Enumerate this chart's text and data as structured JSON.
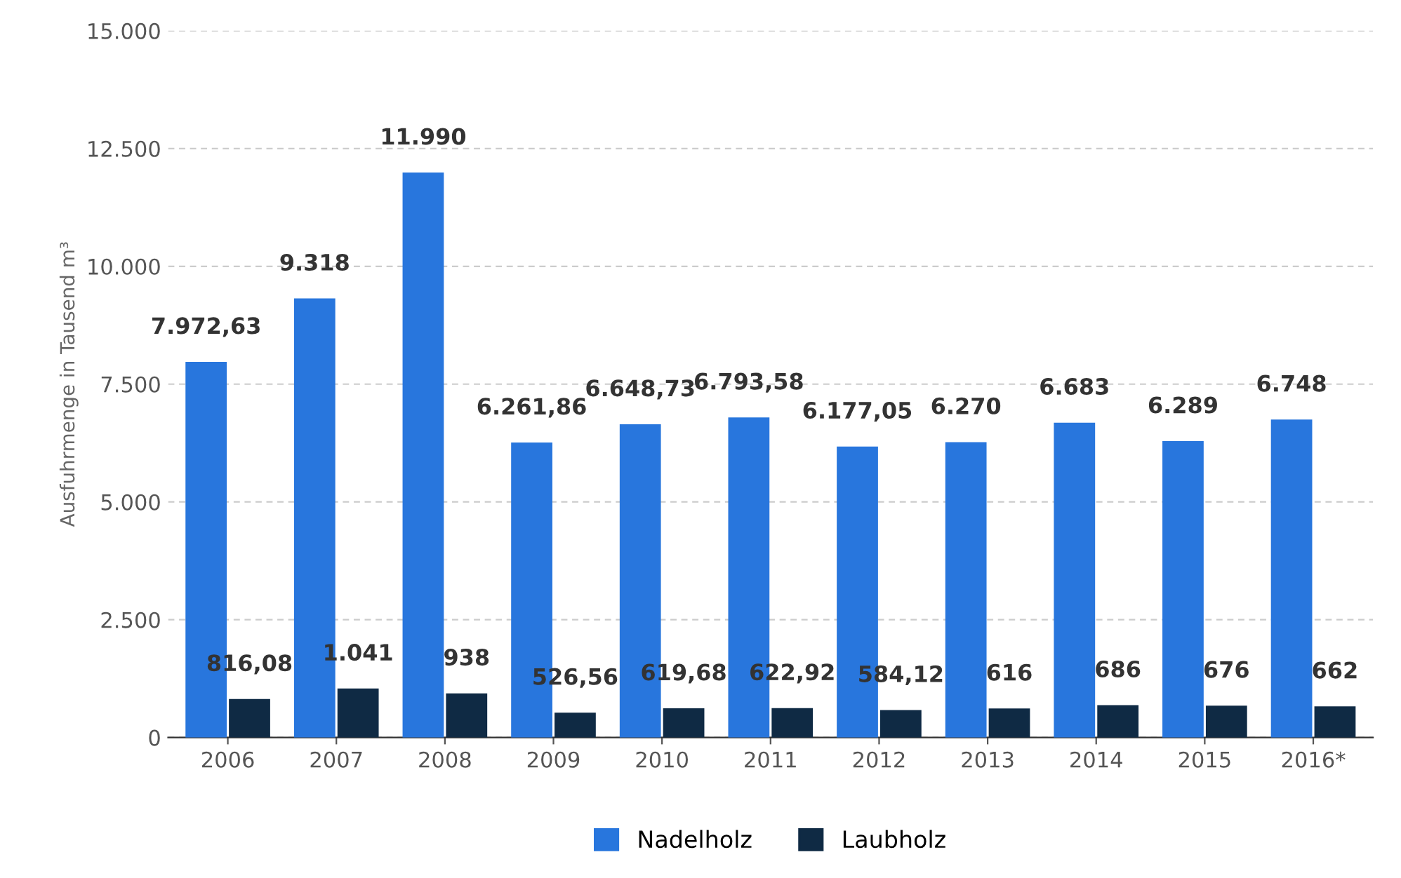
{
  "chart_data": {
    "type": "bar",
    "ylabel": "Ausfuhrmenge in Tausend m³",
    "categories": [
      "2006",
      "2007",
      "2008",
      "2009",
      "2010",
      "2011",
      "2012",
      "2013",
      "2014",
      "2015",
      "2016*"
    ],
    "series": [
      {
        "name": "Nadelholz",
        "color": "#2876dd",
        "values": [
          7972.63,
          9318,
          11990,
          6261.86,
          6648.73,
          6793.58,
          6177.05,
          6270,
          6683,
          6289,
          6748
        ],
        "value_labels": [
          "7.972,63",
          "9.318",
          "11.990",
          "6.261,86",
          "6.648,73",
          "6.793,58",
          "6.177,05",
          "6.270",
          "6.683",
          "6.289",
          "6.748"
        ]
      },
      {
        "name": "Laubholz",
        "color": "#0f2a44",
        "values": [
          816.08,
          1041,
          938,
          526.56,
          619.68,
          622.92,
          584.12,
          616,
          686,
          676,
          662
        ],
        "value_labels": [
          "816,08",
          "1.041",
          "938",
          "526,56",
          "619,68",
          "622,92",
          "584,12",
          "616",
          "686",
          "676",
          "662"
        ]
      }
    ],
    "ylim": [
      0,
      15000
    ],
    "yticks": [
      {
        "value": 0,
        "label": "0"
      },
      {
        "value": 2500,
        "label": "2.500"
      },
      {
        "value": 5000,
        "label": "5.000"
      },
      {
        "value": 7500,
        "label": "7.500"
      },
      {
        "value": 10000,
        "label": "10.000"
      },
      {
        "value": 12500,
        "label": "12.500"
      },
      {
        "value": 15000,
        "label": "15.000"
      }
    ],
    "grid": "y",
    "legend": "bottom"
  }
}
